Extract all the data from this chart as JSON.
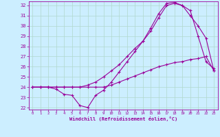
{
  "xlabel": "Windchill (Refroidissement éolien,°C)",
  "background_color": "#cceeff",
  "grid_color": "#b0d8cc",
  "line_color": "#990099",
  "xlim": [
    -0.5,
    23.5
  ],
  "ylim": [
    21.8,
    32.4
  ],
  "xticks": [
    0,
    1,
    2,
    3,
    4,
    5,
    6,
    7,
    8,
    9,
    10,
    11,
    12,
    13,
    14,
    15,
    16,
    17,
    18,
    19,
    20,
    21,
    22,
    23
  ],
  "yticks": [
    22,
    23,
    24,
    25,
    26,
    27,
    28,
    29,
    30,
    31,
    32
  ],
  "line1_x": [
    0,
    1,
    2,
    3,
    4,
    5,
    6,
    7,
    8,
    9,
    10,
    11,
    12,
    13,
    14,
    15,
    16,
    17,
    18,
    19,
    20,
    21,
    22,
    23
  ],
  "line1_y": [
    24,
    24,
    24,
    23.8,
    23.3,
    23.2,
    22.2,
    22.0,
    23.2,
    23.7,
    24.5,
    25.5,
    26.5,
    27.5,
    28.5,
    29.8,
    31.2,
    32.2,
    32.3,
    32.0,
    31.5,
    29.0,
    26.5,
    25.8
  ],
  "line2_x": [
    0,
    1,
    2,
    3,
    4,
    5,
    6,
    7,
    8,
    9,
    10,
    11,
    12,
    13,
    14,
    15,
    16,
    17,
    18,
    19,
    20,
    21,
    22,
    23
  ],
  "line2_y": [
    24,
    24,
    24,
    24,
    24,
    24,
    24,
    24,
    24,
    24,
    24.2,
    24.5,
    24.8,
    25.1,
    25.4,
    25.7,
    26.0,
    26.2,
    26.4,
    26.5,
    26.7,
    26.8,
    27.0,
    25.6
  ],
  "line3_x": [
    0,
    1,
    2,
    3,
    4,
    5,
    6,
    7,
    8,
    9,
    10,
    11,
    12,
    13,
    14,
    15,
    16,
    17,
    18,
    19,
    20,
    21,
    22,
    23
  ],
  "line3_y": [
    24,
    24,
    24,
    24,
    24,
    24,
    24,
    24.2,
    24.5,
    25.0,
    25.6,
    26.2,
    27.0,
    27.8,
    28.5,
    29.5,
    30.8,
    32.0,
    32.2,
    32.0,
    31.0,
    30.0,
    28.8,
    25.6
  ],
  "marker_size": 3,
  "linewidth": 0.8
}
